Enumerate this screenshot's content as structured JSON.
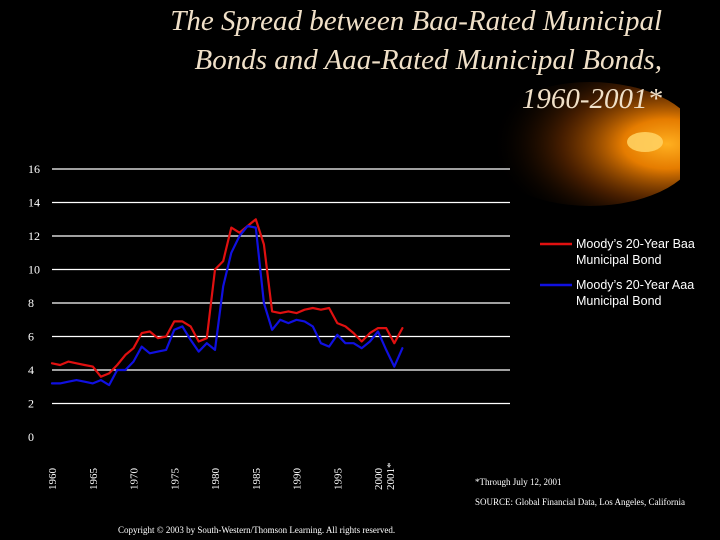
{
  "colors": {
    "background": "#000000",
    "title": "#f0e0c8",
    "baa": "#e01010",
    "aaa": "#1010e0",
    "grid": "#ffffff",
    "glow": "#ff9a00"
  },
  "title_lines": [
    "The Spread between Baa-Rated Municipal",
    "Bonds and Aaa-Rated Municipal Bonds,",
    "1960-2001*"
  ],
  "footnote": "*Through July 12, 2001",
  "source": "SOURCE: Global Financial Data, Los Angeles, California",
  "copyright": "Copyright © 2003 by South-Western/Thomson Learning. All rights reserved.",
  "chart_data": {
    "type": "line",
    "title": "The Spread between Baa-Rated Municipal Bonds and Aaa-Rated Municipal Bonds, 1960-2001*",
    "xlabel": "",
    "ylabel": "",
    "ylim": [
      0,
      16
    ],
    "yticks": [
      0,
      2,
      4,
      6,
      8,
      10,
      12,
      14,
      16
    ],
    "xlim": [
      1960,
      2001.5
    ],
    "xticks": [
      {
        "value": 1960,
        "label": "1960"
      },
      {
        "value": 1965,
        "label": "1965"
      },
      {
        "value": 1970,
        "label": "1970"
      },
      {
        "value": 1975,
        "label": "1975"
      },
      {
        "value": 1980,
        "label": "1980"
      },
      {
        "value": 1985,
        "label": "1985"
      },
      {
        "value": 1990,
        "label": "1990"
      },
      {
        "value": 1995,
        "label": "1995"
      },
      {
        "value": 2000,
        "label": "2000"
      },
      {
        "value": 2001.5,
        "label": "2001*"
      }
    ],
    "grid": "horizontal",
    "legend_position": "right",
    "series": [
      {
        "name": "Moody’s 20-Year Baa Municipal Bond",
        "color": "#e01010",
        "points": [
          [
            1960,
            4.4
          ],
          [
            1961,
            4.3
          ],
          [
            1962,
            4.5
          ],
          [
            1963,
            4.4
          ],
          [
            1964,
            4.3
          ],
          [
            1965,
            4.2
          ],
          [
            1966,
            3.6
          ],
          [
            1967,
            3.8
          ],
          [
            1968,
            4.3
          ],
          [
            1969,
            4.9
          ],
          [
            1970,
            5.3
          ],
          [
            1971,
            6.2
          ],
          [
            1972,
            6.3
          ],
          [
            1973,
            5.9
          ],
          [
            1974,
            6.0
          ],
          [
            1975,
            6.9
          ],
          [
            1976,
            6.9
          ],
          [
            1977,
            6.6
          ],
          [
            1978,
            5.7
          ],
          [
            1979,
            5.9
          ],
          [
            1980,
            10.0
          ],
          [
            1981,
            10.5
          ],
          [
            1982,
            12.5
          ],
          [
            1983,
            12.2
          ],
          [
            1984,
            12.6
          ],
          [
            1985,
            13.0
          ],
          [
            1986,
            11.5
          ],
          [
            1987,
            7.5
          ],
          [
            1988,
            7.4
          ],
          [
            1989,
            7.5
          ],
          [
            1990,
            7.4
          ],
          [
            1991,
            7.6
          ],
          [
            1992,
            7.7
          ],
          [
            1993,
            7.6
          ],
          [
            1994,
            7.7
          ],
          [
            1995,
            6.8
          ],
          [
            1996,
            6.6
          ],
          [
            1997,
            6.2
          ],
          [
            1998,
            5.7
          ],
          [
            1999,
            6.2
          ],
          [
            2000,
            6.5
          ],
          [
            2001,
            6.5
          ],
          [
            2002,
            5.6
          ],
          [
            2003,
            6.5
          ]
        ]
      },
      {
        "name": "Moody’s 20-Year Aaa Municipal Bond",
        "color": "#1010e0",
        "points": [
          [
            1960,
            3.2
          ],
          [
            1961,
            3.2
          ],
          [
            1962,
            3.3
          ],
          [
            1963,
            3.4
          ],
          [
            1964,
            3.3
          ],
          [
            1965,
            3.2
          ],
          [
            1966,
            3.4
          ],
          [
            1967,
            3.1
          ],
          [
            1968,
            4.0
          ],
          [
            1969,
            4.0
          ],
          [
            1970,
            4.5
          ],
          [
            1971,
            5.4
          ],
          [
            1972,
            5.0
          ],
          [
            1973,
            5.1
          ],
          [
            1974,
            5.2
          ],
          [
            1975,
            6.4
          ],
          [
            1976,
            6.6
          ],
          [
            1977,
            5.8
          ],
          [
            1978,
            5.1
          ],
          [
            1979,
            5.6
          ],
          [
            1980,
            5.2
          ],
          [
            1981,
            9.0
          ],
          [
            1982,
            11.0
          ],
          [
            1983,
            12.0
          ],
          [
            1984,
            12.6
          ],
          [
            1985,
            12.5
          ],
          [
            1986,
            8.0
          ],
          [
            1987,
            6.4
          ],
          [
            1988,
            7.0
          ],
          [
            1989,
            6.8
          ],
          [
            1990,
            7.0
          ],
          [
            1991,
            6.9
          ],
          [
            1992,
            6.6
          ],
          [
            1993,
            5.6
          ],
          [
            1994,
            5.4
          ],
          [
            1995,
            6.1
          ],
          [
            1996,
            5.6
          ],
          [
            1997,
            5.6
          ],
          [
            1998,
            5.3
          ],
          [
            1999,
            5.7
          ],
          [
            2000,
            6.3
          ],
          [
            2001,
            5.2
          ],
          [
            2002,
            4.2
          ],
          [
            2003,
            5.3
          ]
        ]
      }
    ]
  }
}
